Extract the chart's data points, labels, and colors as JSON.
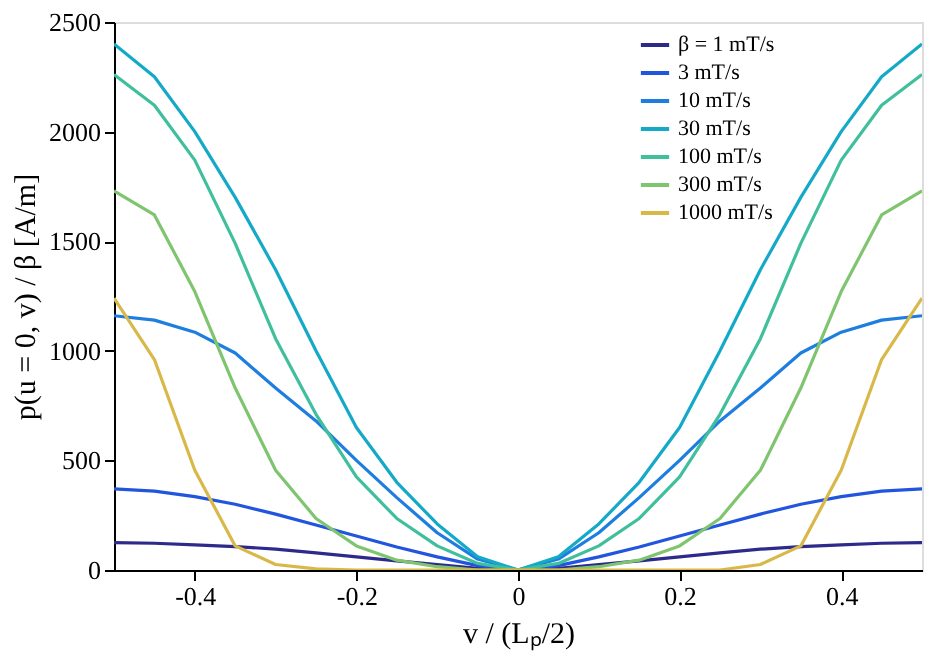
{
  "chart_data": {
    "type": "line",
    "xlabel": "v / (Lₚ/2)",
    "ylabel": "p(u = 0, v) / β [A/m]",
    "x": [
      -0.5,
      -0.45,
      -0.4,
      -0.35,
      -0.3,
      -0.25,
      -0.2,
      -0.15,
      -0.1,
      -0.05,
      0,
      0.05,
      0.1,
      0.15,
      0.2,
      0.25,
      0.3,
      0.35,
      0.4,
      0.45,
      0.5
    ],
    "series": [
      {
        "name": "β = 1 mT/s",
        "color": "#2d2a8c",
        "values": [
          125,
          122,
          115,
          107,
          95,
          78,
          60,
          42,
          25,
          8,
          0,
          8,
          25,
          42,
          60,
          78,
          95,
          107,
          115,
          122,
          125
        ]
      },
      {
        "name": "3 mT/s",
        "color": "#2255dd",
        "values": [
          370,
          360,
          335,
          300,
          255,
          205,
          155,
          105,
          60,
          20,
          0,
          20,
          60,
          105,
          155,
          205,
          255,
          300,
          335,
          360,
          370
        ]
      },
      {
        "name": "10 mT/s",
        "color": "#1e7ee0",
        "values": [
          1160,
          1140,
          1085,
          990,
          830,
          680,
          500,
          330,
          170,
          50,
          0,
          50,
          170,
          330,
          500,
          680,
          830,
          990,
          1085,
          1140,
          1160
        ]
      },
      {
        "name": "30 mT/s",
        "color": "#15a9c8",
        "values": [
          2400,
          2250,
          2000,
          1700,
          1370,
          1000,
          650,
          400,
          210,
          60,
          0,
          60,
          210,
          400,
          650,
          1000,
          1370,
          1700,
          2000,
          2250,
          2400
        ]
      },
      {
        "name": "100 mT/s",
        "color": "#3fbf9c",
        "values": [
          2260,
          2120,
          1870,
          1490,
          1055,
          710,
          425,
          235,
          110,
          30,
          0,
          30,
          110,
          235,
          425,
          710,
          1055,
          1490,
          1870,
          2120,
          2260
        ]
      },
      {
        "name": "300 mT/s",
        "color": "#7fc46e",
        "values": [
          1730,
          1620,
          1270,
          830,
          455,
          235,
          110,
          45,
          15,
          0,
          0,
          0,
          15,
          45,
          110,
          235,
          455,
          830,
          1270,
          1620,
          1730
        ]
      },
      {
        "name": "1000 mT/s",
        "color": "#d9b84a",
        "values": [
          1240,
          960,
          455,
          110,
          25,
          5,
          0,
          0,
          0,
          0,
          0,
          0,
          0,
          0,
          0,
          0,
          25,
          110,
          455,
          960,
          1240
        ]
      }
    ],
    "xlim": [
      -0.5,
      0.5
    ],
    "xticks": [
      -0.4,
      -0.2,
      0,
      0.2,
      0.4
    ],
    "ylim": [
      0,
      2500
    ],
    "yticks": [
      0,
      500,
      1000,
      1500,
      2000,
      2500
    ],
    "grid": false,
    "legend": "top right",
    "line_style": "solid"
  }
}
